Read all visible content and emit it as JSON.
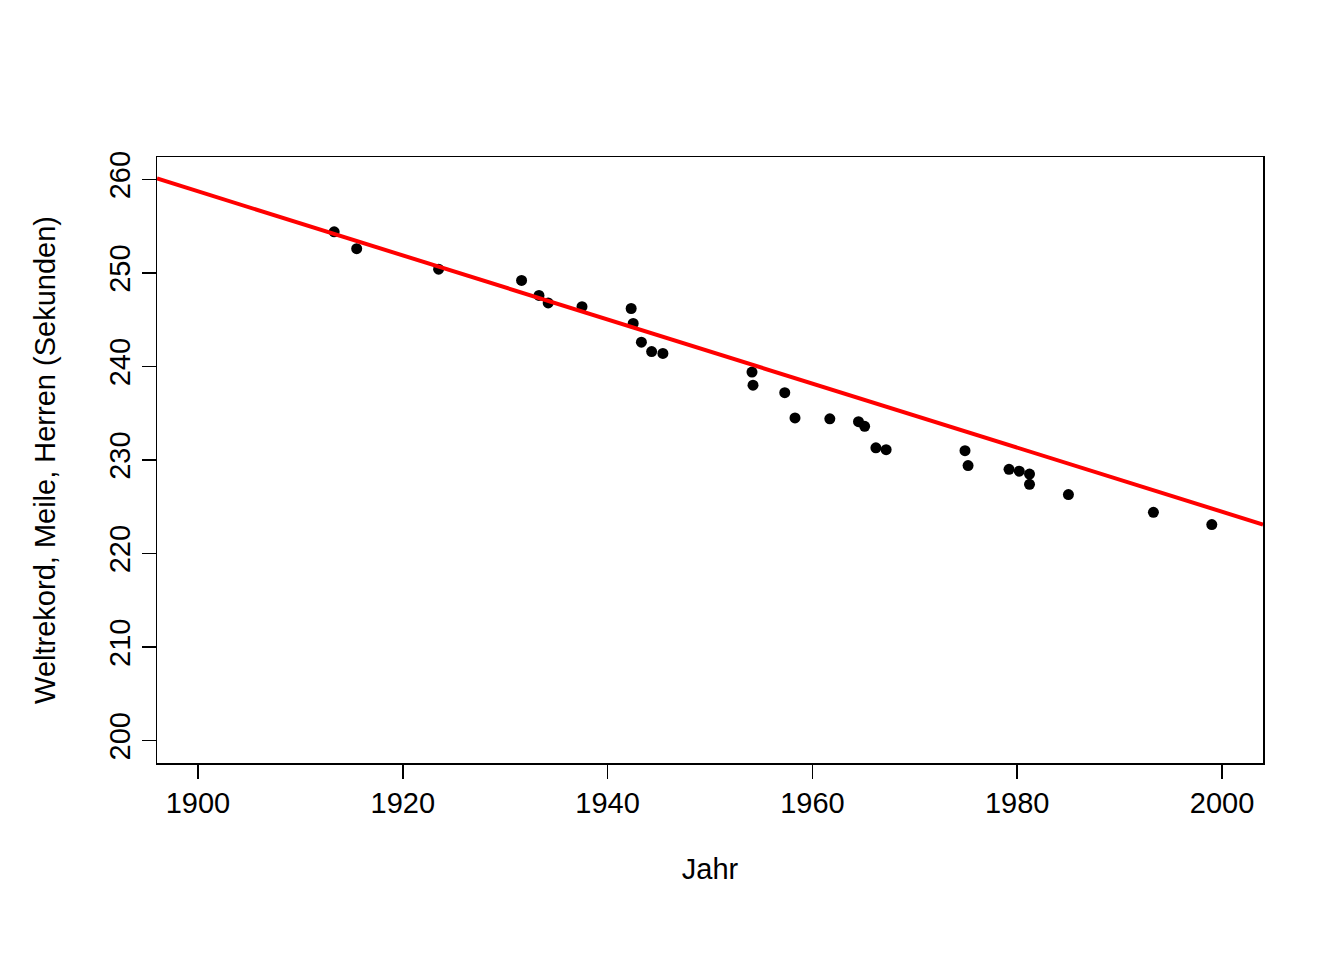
{
  "chart_data": {
    "type": "scatter",
    "x_label": "Jahr",
    "y_label": "Weltrekord, Meile, Herren (Sekunden)",
    "xlim": [
      1896,
      2004
    ],
    "ylim": [
      197.6,
      262.4
    ],
    "xticks": [
      1900,
      1920,
      1940,
      1960,
      1980,
      2000
    ],
    "yticks": [
      200,
      210,
      220,
      230,
      240,
      250,
      260
    ],
    "grid": false,
    "series": [
      {
        "type": "scatter",
        "color": "#000000",
        "marker": "circle",
        "x": [
          1913.3,
          1915.5,
          1923.5,
          1931.6,
          1933.3,
          1934.2,
          1937.5,
          1942.3,
          1942.5,
          1943.3,
          1944.3,
          1945.4,
          1954.1,
          1954.2,
          1957.3,
          1958.3,
          1961.7,
          1964.5,
          1965.1,
          1966.2,
          1967.2,
          1974.9,
          1975.2,
          1979.2,
          1980.2,
          1981.2,
          1981.2,
          1985.0,
          1993.3,
          1999.0
        ],
        "values": [
          254.4,
          252.6,
          250.4,
          249.2,
          247.6,
          246.8,
          246.4,
          246.2,
          244.6,
          242.6,
          241.6,
          241.4,
          239.4,
          238.0,
          237.2,
          234.5,
          234.4,
          234.1,
          233.6,
          231.3,
          231.1,
          231.0,
          229.4,
          229.0,
          228.8,
          228.5,
          227.4,
          226.3,
          224.4,
          223.1
        ]
      },
      {
        "type": "line",
        "color": "#ff0000",
        "line_style": "solid",
        "x": [
          1896,
          2004
        ],
        "values": [
          260.1,
          223.1
        ]
      }
    ]
  }
}
